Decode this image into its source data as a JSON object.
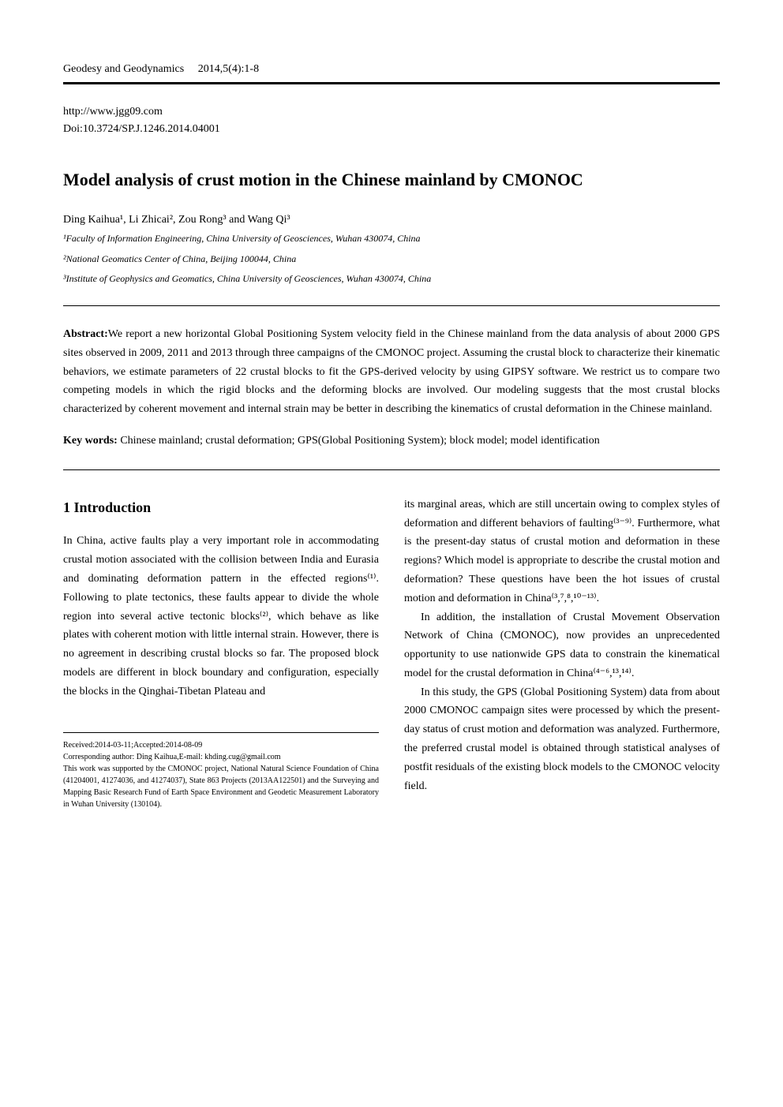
{
  "header": {
    "journal": "Geodesy and Geodynamics",
    "year": "2014",
    "volume": "5(4)",
    "pages": "1-8"
  },
  "doi": {
    "url": "http://www.jgg09.com",
    "doi": "Doi:10.3724/SP.J.1246.2014.04001"
  },
  "title": "Model analysis of crust motion in the Chinese mainland by CMONOC",
  "authors": "Ding Kaihua¹, Li Zhicai², Zou Rong³ and Wang Qi³",
  "affiliations": {
    "aff1": "¹Faculty of Information Engineering, China University of Geosciences, Wuhan 430074, China",
    "aff2": "²National Geomatics Center of China, Beijing 100044, China",
    "aff3": "³Institute of Geophysics and Geomatics, China University of Geosciences, Wuhan 430074, China"
  },
  "abstract": {
    "label": "Abstract:",
    "text": "We report a new horizontal Global Positioning System velocity field in the Chinese mainland from the data analysis of about 2000 GPS sites observed in 2009, 2011 and 2013 through three campaigns of the CMONOC project. Assuming the crustal block to characterize their kinematic behaviors, we estimate parameters of 22 crustal blocks to fit the GPS-derived velocity by using GIPSY software. We restrict us to compare two competing models in which the rigid blocks and the deforming blocks are involved. Our modeling suggests that the most crustal blocks characterized by coherent movement and internal strain may be better in describing the kinematics of crustal deformation in the Chinese mainland."
  },
  "keywords": {
    "label": "Key words:",
    "text": "Chinese mainland; crustal deformation; GPS(Global Positioning System); block model; model identification"
  },
  "section1": {
    "heading": "1    Introduction",
    "p1": "In China, active faults play a very important role in accommodating crustal motion associated with the collision between India and Eurasia and dominating deformation pattern in the effected regions⁽¹⁾. Following to plate tectonics, these faults appear to divide the whole region into several active tectonic blocks⁽²⁾, which behave as like plates with coherent motion with little internal strain. However, there is no agreement in describing crustal blocks so far. The proposed block models are different in block boundary and configuration, especially the blocks in the Qinghai-Tibetan Plateau and",
    "p2": "its marginal areas, which are still uncertain owing to complex styles of deformation and different behaviors of faulting⁽³⁻⁹⁾. Furthermore, what is the present-day status of crustal motion and deformation in these regions? Which model is appropriate to describe the crustal motion and deformation? These questions have been the hot issues of crustal motion and deformation in China⁽³,⁷,⁸,¹⁰⁻¹³⁾.",
    "p3": "In addition, the installation of Crustal Movement Observation Network of China (CMONOC), now provides an unprecedented opportunity to use nationwide GPS data to constrain the kinematical model for the crustal deformation in China⁽⁴⁻⁶,¹³,¹⁴⁾.",
    "p4": "In this study, the GPS (Global Positioning System) data from about 2000 CMONOC campaign sites were processed by which the present-day status of crust motion and deformation was analyzed. Furthermore, the preferred crustal model is obtained through statistical analyses of postfit residuals of the existing block models to the CMONOC velocity field."
  },
  "footnotes": {
    "received": "Received:2014-03-11;Accepted:2014-08-09",
    "author": "Corresponding author: Ding Kaihua,E-mail: khding.cug@gmail.com",
    "funding": "This work was supported by the CMONOC project, National Natural Science Foundation of China (41204001, 41274036, and 41274037), State 863 Projects (2013AA122501) and the Surveying and Mapping Basic Research Fund of Earth Space Environment and Geodetic Measurement Laboratory in Wuhan University (130104)."
  }
}
